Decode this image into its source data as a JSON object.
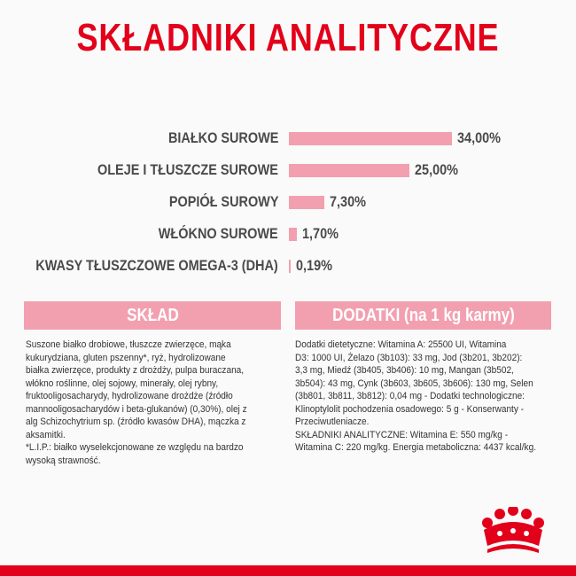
{
  "title": "SKŁADNIKI ANALITYCZNE",
  "chart_data": {
    "type": "bar",
    "orientation": "horizontal",
    "categories": [
      "BIAŁKO SUROWE",
      "OLEJE I TŁUSZCZE SUROWE",
      "POPIÓŁ SUROWY",
      "WŁÓKNO SUROWE",
      "KWASY TŁUSZCZOWE OMEGA-3 (DHA)"
    ],
    "values": [
      34.0,
      25.0,
      7.3,
      1.7,
      0.19
    ],
    "value_labels": [
      "34,00%",
      "25,00%",
      "7,30%",
      "1,70%",
      "0,19%"
    ],
    "bar_color": "#f2a0b0"
  },
  "sklad": {
    "header": "SKŁAD",
    "lines": [
      "Suszone białko drobiowe, tłuszcze zwierzęce, mąka",
      "kukurydziana, gluten pszenny*, ryż, hydrolizowane",
      "białka zwierzęce, produkty z drożdży, pulpa buraczana,",
      "włókno roślinne, olej sojowy, minerały, olej rybny,",
      "fruktooligosacharydy, hydrolizowane drożdże (źródło",
      "mannooligosacharydów i beta-glukanów) (0,30%), olej z",
      "alg Schizochytrium sp. (źródło kwasów DHA), mączka z",
      "aksamitki.",
      "*L.I.P.: białko wyselekcjonowane ze względu na bardzo",
      "wysoką strawność."
    ]
  },
  "dodatki": {
    "header": "DODATKI (na 1 kg karmy)",
    "lines": [
      "Dodatki dietetyczne: Witamina A: 25500 UI, Witamina",
      "D3: 1000 UI, Żelazo (3b103): 33 mg, Jod (3b201, 3b202):",
      "3,3 mg, Miedź (3b405, 3b406): 10 mg, Mangan (3b502,",
      "3b504): 43 mg, Cynk (3b603, 3b605, 3b606): 130 mg, Selen",
      "(3b801, 3b811, 3b812): 0,04 mg - Dodatki technologiczne:",
      "Klinoptylolit pochodzenia osadowego: 5 g - Konserwanty -",
      "Przeciwutleniacze.",
      "SKŁADNIKI ANALITYCZNE: Witamina E: 550 mg/kg -",
      "Witamina C: 220 mg/kg. Energia metaboliczna: 4437 kcal/kg."
    ]
  },
  "colors": {
    "brand_red": "#e2001a",
    "pink": "#f2a0b0",
    "text": "#4a4a4a"
  },
  "logo_icon": "royal-canin-crown-icon"
}
